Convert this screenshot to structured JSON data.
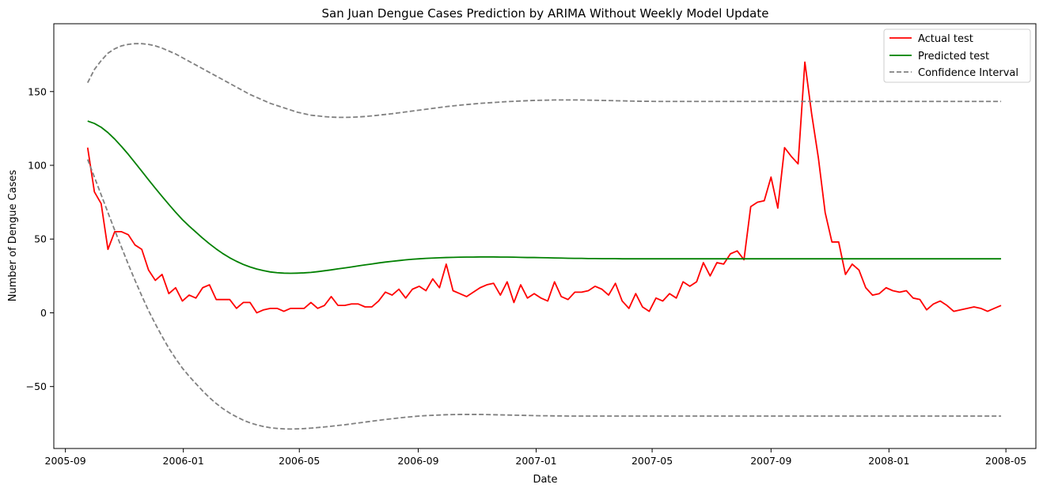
{
  "chart_data": {
    "type": "line",
    "title": "San Juan Dengue Cases Prediction by ARIMA Without Weekly Model Update",
    "xlabel": "Date",
    "ylabel": "Number of Dengue Cases",
    "x_ticks": [
      "2005-09",
      "2006-01",
      "2006-05",
      "2006-09",
      "2007-01",
      "2007-05",
      "2007-09",
      "2008-01",
      "2008-05"
    ],
    "y_ticks": [
      -50,
      0,
      50,
      100,
      150
    ],
    "xlim": [
      "2005-08-20",
      "2008-06-01"
    ],
    "ylim": [
      -92,
      196
    ],
    "grid": false,
    "legend_position": "top-right",
    "series": [
      {
        "name": "Actual test",
        "color": "#ff0000",
        "style": "solid",
        "start_date": "2005-09-24",
        "step_days": 7,
        "values": [
          112,
          82,
          74,
          43,
          55,
          55,
          53,
          46,
          43,
          29,
          22,
          26,
          13,
          17,
          8,
          12,
          10,
          17,
          19,
          9,
          9,
          9,
          3,
          7,
          7,
          0,
          2,
          3,
          3,
          1,
          3,
          3,
          3,
          7,
          3,
          5,
          11,
          5,
          5,
          6,
          6,
          4,
          4,
          8,
          14,
          12,
          16,
          10,
          16,
          18,
          15,
          23,
          17,
          33,
          15,
          13,
          11,
          14,
          17,
          19,
          20,
          12,
          21,
          7,
          19,
          10,
          13,
          10,
          8,
          21,
          11,
          9,
          14,
          14,
          15,
          18,
          16,
          12,
          20,
          8,
          3,
          13,
          4,
          1,
          10,
          8,
          13,
          10,
          21,
          18,
          21,
          34,
          25,
          34,
          33,
          40,
          42,
          36,
          72,
          75,
          76,
          92,
          71,
          112,
          106,
          101,
          170,
          135,
          105,
          68,
          48,
          48,
          26,
          33,
          29,
          17,
          12,
          13,
          17,
          15,
          14,
          15,
          10,
          9,
          2,
          6,
          8,
          5,
          1,
          2,
          3,
          4,
          3,
          1,
          3,
          5
        ]
      },
      {
        "name": "Predicted test",
        "color": "#008000",
        "style": "solid",
        "start_date": "2005-09-24",
        "step_days": 7,
        "values": [
          130,
          128.4,
          125.8,
          122.2,
          117.8,
          112.8,
          107.5,
          101.8,
          96,
          90.2,
          84.5,
          78.9,
          73.5,
          68.2,
          63.2,
          58.8,
          54.7,
          50.6,
          46.8,
          43.3,
          40.1,
          37.3,
          34.9,
          32.8,
          31.1,
          29.7,
          28.6,
          27.7,
          27.2,
          26.9,
          26.8,
          26.9,
          27.1,
          27.4,
          27.9,
          28.5,
          29.1,
          29.8,
          30.4,
          31.1,
          31.8,
          32.5,
          33.1,
          33.8,
          34.4,
          34.9,
          35.4,
          35.9,
          36.3,
          36.6,
          36.9,
          37.1,
          37.3,
          37.5,
          37.6,
          37.7,
          37.8,
          37.8,
          37.9,
          37.9,
          37.9,
          37.8,
          37.8,
          37.7,
          37.6,
          37.5,
          37.5,
          37.4,
          37.3,
          37.2,
          37.1,
          37,
          36.9,
          36.9,
          36.8,
          36.8,
          36.7,
          36.7,
          36.7,
          36.6,
          36.6,
          36.6,
          36.6,
          36.6,
          36.6,
          36.6,
          36.6,
          36.6,
          36.6,
          36.6,
          36.6,
          36.6,
          36.6,
          36.6,
          36.6,
          36.6,
          36.6,
          36.6,
          36.6,
          36.6,
          36.6,
          36.6,
          36.6,
          36.6,
          36.6,
          36.6,
          36.6,
          36.6,
          36.6,
          36.6,
          36.6,
          36.6,
          36.6,
          36.6,
          36.6,
          36.6,
          36.6,
          36.6,
          36.6,
          36.6,
          36.6,
          36.6,
          36.6,
          36.6,
          36.6,
          36.6,
          36.6,
          36.6,
          36.6,
          36.6,
          36.6,
          36.6,
          36.6,
          36.6,
          36.6,
          36.6
        ]
      },
      {
        "name": "Confidence Interval",
        "color": "#808080",
        "style": "dashed",
        "start_date": "2005-09-24",
        "step_days": 7,
        "upper": [
          156,
          165,
          171,
          176,
          179,
          181,
          182,
          182.5,
          182.5,
          182,
          181,
          179.5,
          177.5,
          175.5,
          173,
          170.5,
          168,
          165.5,
          163,
          160.5,
          158,
          155.5,
          153,
          150.5,
          148,
          146,
          144,
          142,
          140.5,
          139,
          137.5,
          136,
          135,
          134,
          133.5,
          133,
          132.7,
          132.5,
          132.5,
          132.6,
          132.8,
          133.1,
          133.5,
          134,
          134.5,
          135,
          135.6,
          136.2,
          136.8,
          137.4,
          138,
          138.6,
          139.2,
          139.8,
          140.3,
          140.8,
          141.2,
          141.6,
          142,
          142.3,
          142.6,
          142.9,
          143.2,
          143.4,
          143.6,
          143.8,
          144,
          144.1,
          144.2,
          144.3,
          144.3,
          144.3,
          144.3,
          144.3,
          144.2,
          144.1,
          144,
          143.9,
          143.8,
          143.7,
          143.6,
          143.5,
          143.4,
          143.4,
          143.3,
          143.3,
          143.3,
          143.3,
          143.3,
          143.3,
          143.3,
          143.3,
          143.3,
          143.3,
          143.3,
          143.3,
          143.3,
          143.3,
          143.3,
          143.3,
          143.3,
          143.3,
          143.3,
          143.3,
          143.3,
          143.3,
          143.3,
          143.3,
          143.3,
          143.3,
          143.3,
          143.3,
          143.3,
          143.3,
          143.3,
          143.3,
          143.3,
          143.3,
          143.3,
          143.3,
          143.3,
          143.3,
          143.3,
          143.3,
          143.3,
          143.3,
          143.3,
          143.3,
          143.3,
          143.3,
          143.3,
          143.3,
          143.3,
          143.3,
          143.3,
          143.3
        ],
        "lower": [
          104,
          92,
          80,
          68,
          56,
          44.5,
          33,
          22,
          11.5,
          1.5,
          -7.5,
          -16,
          -24,
          -31,
          -37.5,
          -43,
          -48,
          -53,
          -57.5,
          -61.5,
          -65,
          -68,
          -70.5,
          -72.8,
          -74.6,
          -76,
          -77.1,
          -77.9,
          -78.4,
          -78.7,
          -78.8,
          -78.7,
          -78.5,
          -78.2,
          -77.8,
          -77.4,
          -76.9,
          -76.4,
          -75.9,
          -75.3,
          -74.7,
          -74.1,
          -73.5,
          -72.9,
          -72.3,
          -71.8,
          -71.3,
          -70.8,
          -70.4,
          -70,
          -69.7,
          -69.5,
          -69.3,
          -69.1,
          -69,
          -68.9,
          -68.9,
          -68.9,
          -68.9,
          -69,
          -69.1,
          -69.2,
          -69.3,
          -69.4,
          -69.5,
          -69.6,
          -69.7,
          -69.8,
          -69.8,
          -69.9,
          -69.9,
          -70,
          -70,
          -70,
          -70,
          -70,
          -70,
          -70,
          -70,
          -70,
          -70,
          -70,
          -70,
          -70,
          -70,
          -70,
          -70,
          -70,
          -70,
          -70,
          -70,
          -70,
          -70,
          -70,
          -70,
          -70,
          -70,
          -70,
          -70,
          -70,
          -70,
          -70,
          -70,
          -70,
          -70,
          -70,
          -70,
          -70,
          -70,
          -70,
          -70,
          -70,
          -70,
          -70,
          -70,
          -70,
          -70,
          -70,
          -70,
          -70,
          -70,
          -70,
          -70,
          -70,
          -70,
          -70,
          -70,
          -70,
          -70,
          -70,
          -70,
          -70,
          -70,
          -70,
          -70,
          -70
        ]
      }
    ]
  }
}
